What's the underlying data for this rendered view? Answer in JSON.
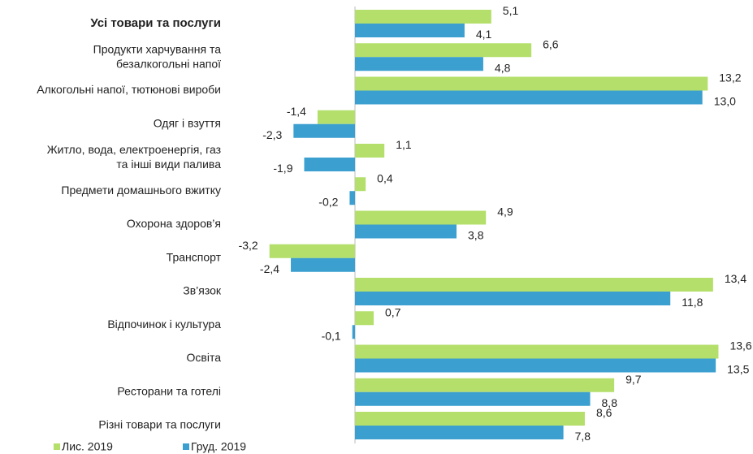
{
  "chart_data": {
    "type": "hbar",
    "categories": [
      "Усі товари та послуги",
      "Продукти харчування та\nбезалкогольні напої",
      "Алкогольні напої, тютюнові вироби",
      "Одяг і взуття",
      "Житло, вода, електроенергія, газ\nта інші види палива",
      "Предмети домашнього вжитку",
      "Охорона здоров’я",
      "Транспорт",
      "Зв’язок",
      "Відпочинок і культура",
      "Освіта",
      "Ресторани та готелі",
      "Різні товари та послуги"
    ],
    "series": [
      {
        "name": "Лис. 2019",
        "color": "#b3df6a",
        "values": [
          5.1,
          6.6,
          13.2,
          -1.4,
          1.1,
          0.4,
          4.9,
          -3.2,
          13.4,
          0.7,
          13.6,
          9.7,
          8.6
        ],
        "value_labels": [
          "5,1",
          "6,6",
          "13,2",
          "-1,4",
          "1,1",
          "0,4",
          "4,9",
          "-3,2",
          "13,4",
          "0,7",
          "13,6",
          "9,7",
          "8,6"
        ]
      },
      {
        "name": "Груд. 2019",
        "color": "#3b9fd0",
        "values": [
          4.1,
          4.8,
          13.0,
          -2.3,
          -1.9,
          -0.2,
          3.8,
          -2.4,
          11.8,
          -0.1,
          13.5,
          8.8,
          7.8
        ],
        "value_labels": [
          "4,1",
          "4,8",
          "13,0",
          "-2,3",
          "-1,9",
          "-0,2",
          "3,8",
          "-2,4",
          "11,8",
          "-0,1",
          "13,5",
          "8,8",
          "7,8"
        ]
      }
    ]
  }
}
